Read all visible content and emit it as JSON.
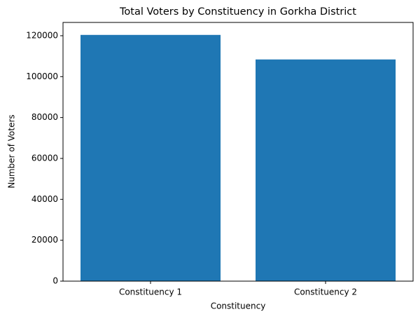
{
  "chart_data": {
    "type": "bar",
    "title": "Total Voters by Constituency in Gorkha District",
    "x_label": "Constituency",
    "y_label": "Number of Voters",
    "categories": [
      "Constituency 1",
      "Constituency 2"
    ],
    "values": [
      120400,
      108400
    ],
    "color": "#1f77b4",
    "ylim": [
      0,
      126500
    ],
    "yticks": [
      0,
      20000,
      40000,
      60000,
      80000,
      100000,
      120000
    ],
    "grid": false
  }
}
